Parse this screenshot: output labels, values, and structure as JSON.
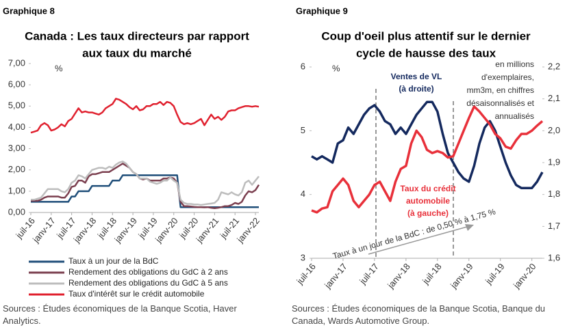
{
  "chart_data": [
    {
      "type": "line",
      "label": "Graphique 8",
      "title": [
        "Canada : Les taux directeurs par rapport",
        "aux taux du marché"
      ],
      "unit_label": "%",
      "categories": [
        "juil-16",
        null,
        null,
        null,
        null,
        null,
        "janv-17",
        null,
        null,
        null,
        null,
        null,
        "juil-17",
        null,
        null,
        null,
        null,
        null,
        "janv-18",
        null,
        null,
        null,
        null,
        null,
        "juil-18",
        null,
        null,
        null,
        null,
        null,
        "janv-19",
        null,
        null,
        null,
        null,
        null,
        "juil-19",
        null,
        null,
        null,
        null,
        null,
        "janv-20",
        null,
        null,
        null,
        null,
        null,
        "juil-20",
        null,
        null,
        null,
        null,
        null,
        "janv-21",
        null,
        null,
        null,
        null,
        null,
        "juil-21",
        null,
        null,
        null,
        null,
        null,
        "janv-22",
        null
      ],
      "ylim": [
        0,
        7
      ],
      "yticks": [
        {
          "value": 0,
          "label": "0,00"
        },
        {
          "value": 1,
          "label": "1,00"
        },
        {
          "value": 2,
          "label": "2,00"
        },
        {
          "value": 3,
          "label": "3,00"
        },
        {
          "value": 4,
          "label": "4,00"
        },
        {
          "value": 5,
          "label": "5,00"
        },
        {
          "value": 6,
          "label": "6,00"
        },
        {
          "value": 7,
          "label": "7,00"
        }
      ],
      "legend": "bottom",
      "series": [
        {
          "name": "Taux à un jour de la BdC",
          "color": "#1f4e79",
          "values": [
            0.5,
            0.5,
            0.5,
            0.5,
            0.5,
            0.5,
            0.5,
            0.5,
            0.5,
            0.5,
            0.5,
            0.5,
            0.75,
            0.75,
            1,
            1,
            1,
            1,
            1.25,
            1.25,
            1.25,
            1.25,
            1.25,
            1.25,
            1.5,
            1.5,
            1.5,
            1.75,
            1.75,
            1.75,
            1.75,
            1.75,
            1.75,
            1.75,
            1.75,
            1.75,
            1.75,
            1.75,
            1.75,
            1.75,
            1.75,
            1.75,
            1.75,
            1.75,
            0.25,
            0.25,
            0.25,
            0.25,
            0.25,
            0.25,
            0.25,
            0.25,
            0.25,
            0.25,
            0.25,
            0.25,
            0.25,
            0.25,
            0.25,
            0.25,
            0.25,
            0.25,
            0.25,
            0.25,
            0.25,
            0.25,
            0.25,
            0.25
          ]
        },
        {
          "name": "Rendement des obligations du GdC à 2 ans",
          "color": "#7b3f4f",
          "values": [
            0.55,
            0.55,
            0.55,
            0.6,
            0.7,
            0.75,
            0.75,
            0.75,
            0.75,
            0.7,
            0.7,
            0.9,
            1.2,
            1.25,
            1.5,
            1.5,
            1.4,
            1.7,
            1.8,
            1.8,
            1.85,
            1.9,
            1.9,
            1.9,
            2.0,
            2.1,
            2.2,
            2.3,
            2.2,
            2.1,
            1.9,
            1.8,
            1.6,
            1.55,
            1.6,
            1.5,
            1.5,
            1.5,
            1.5,
            1.6,
            1.6,
            1.65,
            1.6,
            1.4,
            0.5,
            0.3,
            0.3,
            0.28,
            0.26,
            0.25,
            0.25,
            0.24,
            0.25,
            0.22,
            0.2,
            0.22,
            0.25,
            0.3,
            0.3,
            0.35,
            0.45,
            0.4,
            0.5,
            0.8,
            1.0,
            0.95,
            1.05,
            1.3
          ]
        },
        {
          "name": "Rendement des obligations du GdC à 5 ans",
          "color": "#bdbdbd",
          "values": [
            0.6,
            0.6,
            0.65,
            0.7,
            0.9,
            1.1,
            1.1,
            1.1,
            1.1,
            1.0,
            0.95,
            1.1,
            1.4,
            1.5,
            1.75,
            1.7,
            1.6,
            1.8,
            2.0,
            2.05,
            2.1,
            2.1,
            2.05,
            2.15,
            2.1,
            2.25,
            2.35,
            2.4,
            2.3,
            2.1,
            1.9,
            1.8,
            1.6,
            1.6,
            1.6,
            1.45,
            1.4,
            1.35,
            1.4,
            1.5,
            1.5,
            1.65,
            1.5,
            1.4,
            0.6,
            0.45,
            0.4,
            0.4,
            0.38,
            0.38,
            0.35,
            0.38,
            0.4,
            0.42,
            0.45,
            0.6,
            0.95,
            0.9,
            0.85,
            0.95,
            0.85,
            0.8,
            0.95,
            1.4,
            1.5,
            1.3,
            1.5,
            1.7
          ]
        },
        {
          "name": "Taux d'intérêt sur le crédit automobile",
          "color": "#e0202e",
          "values": [
            3.75,
            3.8,
            3.85,
            4.1,
            4.2,
            4.1,
            3.85,
            3.9,
            4.0,
            4.15,
            4.05,
            4.3,
            4.4,
            4.65,
            4.9,
            4.7,
            4.75,
            4.7,
            4.7,
            4.65,
            4.6,
            4.7,
            4.9,
            5.0,
            5.1,
            5.35,
            5.3,
            5.2,
            5.1,
            4.95,
            4.85,
            5.0,
            4.8,
            4.85,
            5.0,
            5.0,
            5.1,
            5.1,
            5.2,
            5.05,
            5.2,
            5.15,
            5.0,
            4.6,
            4.25,
            4.15,
            4.2,
            4.15,
            4.2,
            4.3,
            4.4,
            4.1,
            4.35,
            4.6,
            4.4,
            4.5,
            4.35,
            4.5,
            4.75,
            4.8,
            4.8,
            4.9,
            4.95,
            5.0,
            5.0,
            4.97,
            5.0,
            4.97
          ]
        }
      ],
      "source": "Sources : Études économiques de la Banque Scotia, Haver Analytics."
    },
    {
      "type": "line",
      "label": "Graphique 9",
      "title": [
        "Coup d'oeil plus attentif sur le dernier",
        "cycle de hausse des taux"
      ],
      "unit_label": "%",
      "categories": [
        "juil-16",
        null,
        null,
        null,
        null,
        null,
        "janv-17",
        null,
        null,
        null,
        null,
        null,
        "juil-17",
        null,
        null,
        null,
        null,
        null,
        "janv-18",
        null,
        null,
        null,
        null,
        null,
        "juil-18",
        null,
        null,
        null,
        null,
        null,
        "janv-19",
        null,
        null,
        null,
        null,
        null,
        "juil-19",
        null,
        null,
        null,
        null,
        null,
        "janv-20",
        null,
        null
      ],
      "ylim": [
        3,
        6
      ],
      "yticks": [
        3,
        4,
        5,
        6
      ],
      "y2lim": [
        1.6,
        2.2
      ],
      "y2ticks": [
        {
          "value": 1.6,
          "label": "1,6"
        },
        {
          "value": 1.7,
          "label": "1,7"
        },
        {
          "value": 1.8,
          "label": "1,8"
        },
        {
          "value": 1.9,
          "label": "1,9"
        },
        {
          "value": 2.0,
          "label": "2,0"
        },
        {
          "value": 2.1,
          "label": "2,1"
        },
        {
          "value": 2.2,
          "label": "2,2"
        }
      ],
      "series": [
        {
          "color": "#14295e",
          "axis": "y2",
          "values": [
            1.92,
            1.91,
            1.92,
            1.91,
            1.9,
            1.96,
            1.97,
            2.01,
            1.99,
            2.02,
            2.05,
            2.07,
            2.08,
            2.06,
            2.03,
            2.02,
            1.99,
            2.01,
            1.99,
            2.02,
            2.05,
            2.07,
            2.09,
            2.09,
            2.06,
            1.99,
            1.93,
            1.9,
            1.87,
            1.85,
            1.84,
            1.89,
            1.96,
            2.01,
            2.03,
            2.0,
            1.95,
            1.9,
            1.86,
            1.83,
            1.82,
            1.82,
            1.82,
            1.84,
            1.87
          ]
        },
        {
          "color": "#e8303a",
          "values": [
            3.75,
            3.72,
            3.78,
            3.8,
            4.05,
            4.15,
            4.25,
            4.15,
            3.9,
            3.8,
            3.9,
            4.0,
            4.15,
            4.2,
            4.05,
            3.9,
            4.2,
            4.4,
            4.45,
            4.8,
            5.0,
            4.9,
            4.7,
            4.65,
            4.68,
            4.65,
            4.58,
            4.6,
            4.8,
            5.0,
            5.2,
            5.38,
            5.3,
            5.2,
            5.1,
            4.95,
            4.88,
            4.75,
            4.72,
            4.85,
            4.95,
            4.95,
            5.0,
            5.08,
            5.15
          ]
        }
      ],
      "annotations": [
        {
          "lines": [
            "Ventes de VL",
            "(à droite)"
          ]
        },
        {
          "lines": [
            "Taux du crédit",
            "automobile",
            "(à gauche)"
          ]
        },
        {
          "lines": [
            "en millions",
            "d'exemplaires,",
            "mm3m, en chiffres",
            "désaisonnalisés et",
            "annualisés"
          ]
        },
        {
          "lines": [
            "Taux à un jour de la BdC : de 0,50 % à 1,75 %"
          ]
        }
      ],
      "source": "Sources : Études économiques de la Banque Scotia, Banque du Canada, Wards Automotive Group."
    }
  ]
}
